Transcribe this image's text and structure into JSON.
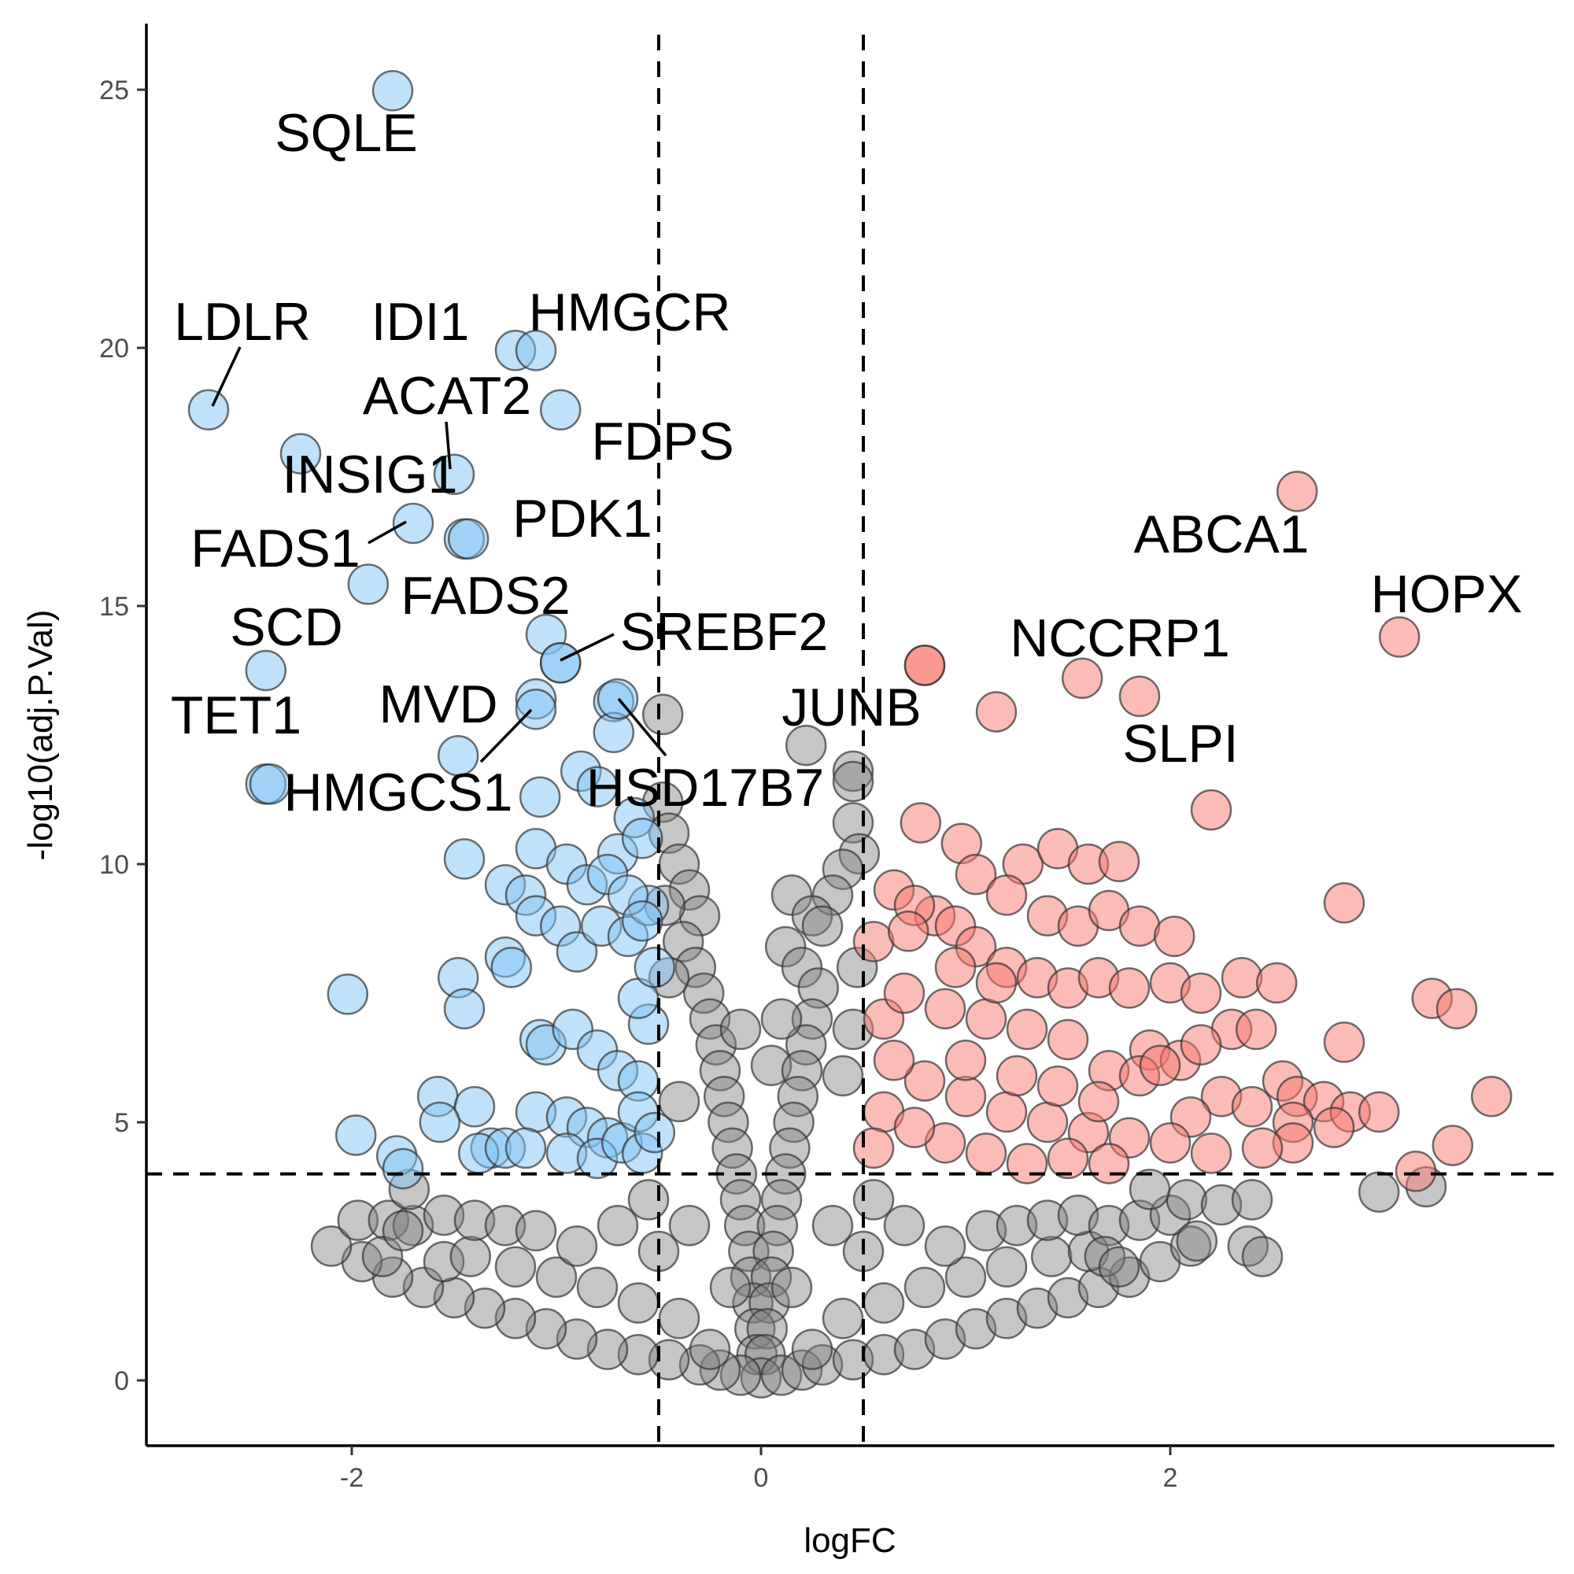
{
  "chart_data": {
    "type": "scatter",
    "title": "",
    "xlabel": "logFC",
    "ylabel": "-log10(adj.P.Val)",
    "xlim": [
      -3.0,
      3.85
    ],
    "ylim": [
      -1.25,
      26.2
    ],
    "x_ticks": [
      -2,
      0,
      2
    ],
    "x_tick_labels": [
      "-2",
      "0",
      "2"
    ],
    "y_ticks": [
      0,
      5,
      10,
      15,
      20,
      25
    ],
    "y_tick_labels": [
      "0",
      "5",
      "10",
      "15",
      "20",
      "25"
    ],
    "grid": false,
    "legend": "none",
    "thresholds": {
      "logFC": [
        -0.5,
        0.5
      ],
      "neg_log10_adj_p": 4.0
    },
    "colors": {
      "down": "#7fc4f4",
      "up": "#f8776d",
      "ns": "#808080",
      "edge": "#333333"
    },
    "labeled_points": [
      {
        "gene": "SQLE",
        "x": -1.8,
        "y": 24.98,
        "group": "down"
      },
      {
        "gene": "LDLR",
        "x": -2.7,
        "y": 18.8,
        "group": "down"
      },
      {
        "gene": "IDI1",
        "x": -1.2,
        "y": 19.95,
        "group": "down"
      },
      {
        "gene": "HMGCR",
        "x": -1.1,
        "y": 19.95,
        "group": "down"
      },
      {
        "gene": "ACAT2",
        "x": -1.5,
        "y": 17.55,
        "group": "down"
      },
      {
        "gene": "FDPS",
        "x": -0.98,
        "y": 18.8,
        "group": "down"
      },
      {
        "gene": "INSIG1",
        "x": -2.25,
        "y": 17.95,
        "group": "down"
      },
      {
        "gene": "FADS1",
        "x": -1.7,
        "y": 16.6,
        "group": "down"
      },
      {
        "gene": "PDK1",
        "x": -1.43,
        "y": 16.3,
        "group": "down"
      },
      {
        "gene": "FADS2",
        "x": -1.92,
        "y": 15.42,
        "group": "down"
      },
      {
        "gene": "SCD",
        "x": -2.42,
        "y": 13.75,
        "group": "down"
      },
      {
        "gene": "SREBF2",
        "x": -0.98,
        "y": 13.9,
        "group": "down"
      },
      {
        "gene": "TET1",
        "x": -2.4,
        "y": 11.55,
        "group": "down"
      },
      {
        "gene": "MVD",
        "x": -1.1,
        "y": 13.2,
        "group": "down"
      },
      {
        "gene": "HMGCS1",
        "x": -1.1,
        "y": 13.0,
        "group": "down"
      },
      {
        "gene": "HSD17B7",
        "x": -0.7,
        "y": 13.2,
        "group": "down"
      },
      {
        "gene": "JUNB",
        "x": 0.8,
        "y": 13.85,
        "group": "up"
      },
      {
        "gene": "ABCA1",
        "x": 2.62,
        "y": 17.22,
        "group": "up"
      },
      {
        "gene": "HOPX",
        "x": 3.12,
        "y": 14.4,
        "group": "up"
      },
      {
        "gene": "NCCRP1",
        "x": 1.57,
        "y": 13.6,
        "group": "up"
      },
      {
        "gene": "SLPI",
        "x": 1.85,
        "y": 13.25,
        "group": "up"
      }
    ],
    "other_points": {
      "down": [
        [
          -1.45,
          16.3
        ],
        [
          -1.05,
          14.45
        ],
        [
          -0.98,
          13.9
        ],
        [
          -0.72,
          13.15
        ],
        [
          -0.72,
          12.55
        ],
        [
          -1.48,
          12.1
        ],
        [
          -2.42,
          11.55
        ],
        [
          -0.88,
          11.8
        ],
        [
          -1.08,
          11.3
        ],
        [
          -0.8,
          11.5
        ],
        [
          -1.1,
          10.3
        ],
        [
          -1.45,
          10.1
        ],
        [
          -0.62,
          10.9
        ],
        [
          -1.25,
          9.6
        ],
        [
          -1.15,
          9.4
        ],
        [
          -1.1,
          9.0
        ],
        [
          -0.98,
          8.8
        ],
        [
          -0.9,
          8.3
        ],
        [
          -0.78,
          8.8
        ],
        [
          -0.65,
          8.6
        ],
        [
          -1.25,
          8.2
        ],
        [
          -1.22,
          8.0
        ],
        [
          -1.48,
          7.8
        ],
        [
          -1.45,
          7.2
        ],
        [
          -2.02,
          7.48
        ],
        [
          -1.08,
          6.6
        ],
        [
          -1.05,
          6.5
        ],
        [
          -0.92,
          6.8
        ],
        [
          -0.8,
          6.4
        ],
        [
          -0.7,
          6.0
        ],
        [
          -0.6,
          5.8
        ],
        [
          -0.55,
          6.9
        ],
        [
          -0.6,
          7.4
        ],
        [
          -0.52,
          8.0
        ],
        [
          -1.58,
          5.5
        ],
        [
          -1.4,
          5.3
        ],
        [
          -1.57,
          5.0
        ],
        [
          -1.1,
          5.2
        ],
        [
          -0.95,
          5.1
        ],
        [
          -0.85,
          4.9
        ],
        [
          -0.75,
          4.7
        ],
        [
          -1.98,
          4.75
        ],
        [
          -1.32,
          4.5
        ],
        [
          -1.38,
          4.4
        ],
        [
          -1.25,
          4.5
        ],
        [
          -1.15,
          4.5
        ],
        [
          -0.95,
          4.4
        ],
        [
          -0.8,
          4.3
        ],
        [
          -0.68,
          4.6
        ],
        [
          -0.58,
          4.4
        ],
        [
          -1.78,
          4.35
        ],
        [
          -1.75,
          4.1
        ],
        [
          -0.55,
          9.2
        ],
        [
          -0.7,
          10.2
        ],
        [
          -0.58,
          10.5
        ],
        [
          -0.95,
          10.0
        ],
        [
          -0.85,
          9.6
        ],
        [
          -0.75,
          9.8
        ],
        [
          -0.65,
          9.4
        ],
        [
          -0.6,
          5.2
        ],
        [
          -0.52,
          4.8
        ],
        [
          -0.58,
          8.9
        ]
      ],
      "up": [
        [
          0.8,
          13.85
        ],
        [
          1.15,
          12.95
        ],
        [
          2.2,
          11.05
        ],
        [
          2.85,
          9.25
        ],
        [
          1.28,
          10.0
        ],
        [
          1.45,
          10.3
        ],
        [
          1.6,
          10.0
        ],
        [
          1.75,
          10.05
        ],
        [
          0.78,
          10.8
        ],
        [
          0.98,
          10.4
        ],
        [
          1.05,
          9.8
        ],
        [
          1.2,
          9.4
        ],
        [
          1.4,
          9.0
        ],
        [
          1.55,
          8.8
        ],
        [
          1.7,
          9.1
        ],
        [
          1.85,
          8.8
        ],
        [
          2.02,
          8.6
        ],
        [
          0.85,
          9.0
        ],
        [
          0.95,
          8.8
        ],
        [
          1.05,
          8.4
        ],
        [
          1.2,
          8.0
        ],
        [
          1.35,
          7.8
        ],
        [
          1.5,
          7.6
        ],
        [
          1.65,
          7.8
        ],
        [
          1.8,
          7.6
        ],
        [
          2.0,
          7.7
        ],
        [
          2.15,
          7.5
        ],
        [
          2.35,
          7.8
        ],
        [
          2.52,
          7.7
        ],
        [
          3.28,
          7.4
        ],
        [
          3.4,
          7.2
        ],
        [
          2.85,
          6.55
        ],
        [
          2.3,
          6.8
        ],
        [
          2.42,
          6.8
        ],
        [
          1.9,
          6.4
        ],
        [
          2.05,
          6.2
        ],
        [
          2.15,
          6.5
        ],
        [
          1.7,
          6.0
        ],
        [
          1.85,
          5.9
        ],
        [
          1.95,
          6.1
        ],
        [
          2.55,
          5.8
        ],
        [
          2.62,
          5.5
        ],
        [
          2.75,
          5.4
        ],
        [
          2.88,
          5.2
        ],
        [
          3.02,
          5.2
        ],
        [
          3.57,
          5.5
        ],
        [
          2.25,
          5.5
        ],
        [
          2.4,
          5.3
        ],
        [
          2.1,
          5.1
        ],
        [
          2.6,
          5.0
        ],
        [
          2.8,
          4.9
        ],
        [
          3.38,
          4.55
        ],
        [
          3.2,
          4.05
        ],
        [
          2.6,
          4.6
        ],
        [
          2.45,
          4.5
        ],
        [
          2.2,
          4.4
        ],
        [
          2.0,
          4.6
        ],
        [
          1.8,
          4.7
        ],
        [
          1.6,
          4.8
        ],
        [
          1.4,
          5.0
        ],
        [
          1.2,
          5.2
        ],
        [
          1.0,
          5.5
        ],
        [
          0.8,
          5.8
        ],
        [
          0.65,
          6.2
        ],
        [
          0.6,
          7.0
        ],
        [
          0.7,
          7.5
        ],
        [
          0.9,
          7.2
        ],
        [
          1.1,
          7.0
        ],
        [
          1.3,
          6.8
        ],
        [
          1.5,
          6.6
        ],
        [
          0.55,
          8.5
        ],
        [
          0.65,
          9.5
        ],
        [
          0.75,
          9.2
        ],
        [
          0.6,
          5.2
        ],
        [
          0.9,
          4.6
        ],
        [
          1.1,
          4.4
        ],
        [
          1.3,
          4.2
        ],
        [
          1.5,
          4.3
        ],
        [
          1.7,
          4.2
        ],
        [
          0.55,
          4.5
        ],
        [
          0.75,
          4.9
        ],
        [
          1.0,
          6.2
        ],
        [
          1.25,
          5.9
        ],
        [
          1.45,
          5.7
        ],
        [
          1.65,
          5.4
        ],
        [
          0.95,
          8.0
        ],
        [
          1.15,
          7.7
        ],
        [
          0.72,
          8.7
        ]
      ],
      "ns": [
        [
          -0.48,
          12.9
        ],
        [
          0.22,
          12.3
        ],
        [
          0.45,
          11.8
        ],
        [
          0.45,
          11.6
        ],
        [
          -0.48,
          11.2
        ],
        [
          0.45,
          10.8
        ],
        [
          -0.45,
          10.6
        ],
        [
          0.48,
          10.2
        ],
        [
          -0.4,
          10.0
        ],
        [
          0.4,
          9.9
        ],
        [
          -0.35,
          9.5
        ],
        [
          0.35,
          9.4
        ],
        [
          0.15,
          9.4
        ],
        [
          0.25,
          9.0
        ],
        [
          0.3,
          8.8
        ],
        [
          0.12,
          8.4
        ],
        [
          0.2,
          8.0
        ],
        [
          -0.3,
          9.0
        ],
        [
          -0.38,
          8.5
        ],
        [
          -0.32,
          8.0
        ],
        [
          -0.28,
          7.5
        ],
        [
          0.28,
          7.6
        ],
        [
          -0.25,
          7.0
        ],
        [
          0.25,
          7.0
        ],
        [
          -0.22,
          6.5
        ],
        [
          0.22,
          6.5
        ],
        [
          0.05,
          6.1
        ],
        [
          -0.2,
          6.0
        ],
        [
          0.2,
          6.0
        ],
        [
          -0.18,
          5.5
        ],
        [
          0.18,
          5.5
        ],
        [
          -0.16,
          5.0
        ],
        [
          0.16,
          5.0
        ],
        [
          -0.14,
          4.5
        ],
        [
          0.14,
          4.5
        ],
        [
          -0.12,
          4.0
        ],
        [
          0.12,
          4.0
        ],
        [
          -0.1,
          3.5
        ],
        [
          0.1,
          3.5
        ],
        [
          -0.08,
          3.0
        ],
        [
          0.08,
          3.0
        ],
        [
          -0.06,
          2.5
        ],
        [
          0.06,
          2.5
        ],
        [
          -0.05,
          2.0
        ],
        [
          0.05,
          2.0
        ],
        [
          -0.04,
          1.5
        ],
        [
          0.04,
          1.5
        ],
        [
          -0.03,
          1.0
        ],
        [
          0.03,
          1.0
        ],
        [
          -0.02,
          0.5
        ],
        [
          0.02,
          0.5
        ],
        [
          0.0,
          0.05
        ],
        [
          -0.1,
          0.1
        ],
        [
          0.1,
          0.1
        ],
        [
          -0.2,
          0.2
        ],
        [
          0.2,
          0.2
        ],
        [
          -0.3,
          0.3
        ],
        [
          0.3,
          0.3
        ],
        [
          -0.45,
          0.4
        ],
        [
          0.45,
          0.4
        ],
        [
          -0.6,
          0.5
        ],
        [
          0.6,
          0.5
        ],
        [
          -0.75,
          0.6
        ],
        [
          0.75,
          0.6
        ],
        [
          -0.9,
          0.8
        ],
        [
          0.9,
          0.8
        ],
        [
          -1.05,
          1.0
        ],
        [
          1.05,
          1.0
        ],
        [
          -1.2,
          1.2
        ],
        [
          1.2,
          1.2
        ],
        [
          -1.35,
          1.4
        ],
        [
          1.35,
          1.4
        ],
        [
          -1.5,
          1.6
        ],
        [
          1.5,
          1.6
        ],
        [
          -1.65,
          1.8
        ],
        [
          1.65,
          1.8
        ],
        [
          -1.8,
          2.0
        ],
        [
          1.8,
          2.0
        ],
        [
          -1.95,
          2.3
        ],
        [
          1.95,
          2.3
        ],
        [
          -2.1,
          2.6
        ],
        [
          2.1,
          2.6
        ],
        [
          -1.55,
          2.3
        ],
        [
          -1.42,
          2.4
        ],
        [
          -1.2,
          2.2
        ],
        [
          -1.0,
          2.0
        ],
        [
          -0.8,
          1.8
        ],
        [
          -0.6,
          1.5
        ],
        [
          0.6,
          1.5
        ],
        [
          0.8,
          1.8
        ],
        [
          1.0,
          2.0
        ],
        [
          1.2,
          2.2
        ],
        [
          1.42,
          2.4
        ],
        [
          1.6,
          2.5
        ],
        [
          -1.97,
          3.1
        ],
        [
          -1.82,
          3.1
        ],
        [
          -1.7,
          3.0
        ],
        [
          -1.55,
          3.2
        ],
        [
          -1.4,
          3.1
        ],
        [
          -1.25,
          3.0
        ],
        [
          -1.1,
          2.9
        ],
        [
          1.1,
          2.9
        ],
        [
          1.25,
          3.0
        ],
        [
          1.4,
          3.1
        ],
        [
          1.55,
          3.2
        ],
        [
          1.7,
          3.0
        ],
        [
          1.85,
          3.1
        ],
        [
          2.0,
          3.2
        ],
        [
          2.38,
          2.6
        ],
        [
          2.45,
          2.4
        ],
        [
          2.13,
          2.7
        ],
        [
          1.68,
          2.4
        ],
        [
          1.75,
          2.2
        ],
        [
          3.02,
          3.65
        ],
        [
          3.25,
          3.75
        ],
        [
          2.08,
          3.5
        ],
        [
          2.25,
          3.4
        ],
        [
          2.4,
          3.5
        ],
        [
          1.9,
          3.7
        ],
        [
          -1.85,
          2.4
        ],
        [
          -1.72,
          3.7
        ],
        [
          -1.75,
          2.9
        ],
        [
          -0.55,
          3.5
        ],
        [
          0.55,
          3.5
        ],
        [
          -0.5,
          2.5
        ],
        [
          0.5,
          2.5
        ],
        [
          -0.4,
          1.2
        ],
        [
          0.4,
          1.2
        ],
        [
          -0.25,
          0.6
        ],
        [
          0.25,
          0.6
        ],
        [
          -0.15,
          1.8
        ],
        [
          0.15,
          1.8
        ],
        [
          -0.35,
          3.0
        ],
        [
          0.35,
          3.0
        ],
        [
          -0.7,
          3.0
        ],
        [
          0.7,
          3.0
        ],
        [
          -0.9,
          2.6
        ],
        [
          0.9,
          2.6
        ],
        [
          0.4,
          5.9
        ],
        [
          -0.4,
          5.4
        ],
        [
          0.45,
          6.8
        ],
        [
          -0.45,
          7.8
        ],
        [
          0.47,
          8.0
        ],
        [
          -0.47,
          9.2
        ],
        [
          0.1,
          7.0
        ],
        [
          -0.1,
          6.8
        ]
      ]
    }
  }
}
